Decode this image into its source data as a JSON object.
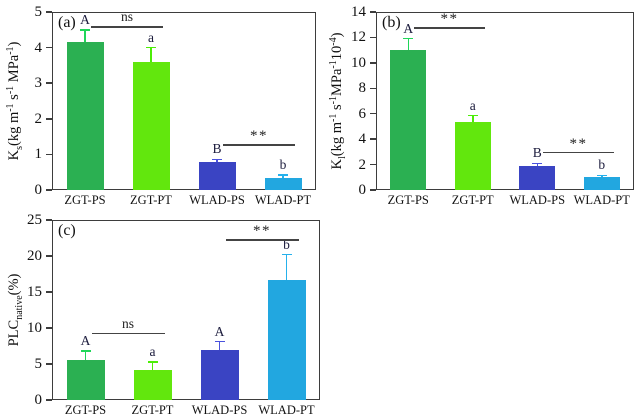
{
  "figure": {
    "background": "#ffffff",
    "description_title": "Bar charts of hydraulic traits by site and organ"
  },
  "palette": {
    "bar_colors": [
      "#2bb052",
      "#62e70d",
      "#3a44c3",
      "#22a7e0"
    ],
    "err_colors": [
      "#1fd659",
      "#4ced07",
      "#4a52dd",
      "#25b1ec"
    ],
    "letter_color": "#1b1b3c",
    "axis_color": "#3d3d3d",
    "sig_color": "#444444"
  },
  "chart_data": [
    {
      "type": "bar",
      "panel": "(a)",
      "ylabel_text": "Ks(kg m-1 s-1 MPa-1)",
      "ylabel_segments": [
        {
          "t": "K"
        },
        {
          "t": "s",
          "style": "sub"
        },
        {
          "t": "(kg m"
        },
        {
          "t": "-1",
          "style": "sup"
        },
        {
          "t": " s"
        },
        {
          "t": "-1",
          "style": "sup"
        },
        {
          "t": " MPa"
        },
        {
          "t": "-1",
          "style": "sup"
        },
        {
          "t": ")"
        }
      ],
      "categories": [
        "ZGT-PS",
        "ZGT-PT",
        "WLAD-PS",
        "WLAD-PT"
      ],
      "values": [
        4.15,
        3.6,
        0.78,
        0.35
      ],
      "errors": [
        0.35,
        0.4,
        0.08,
        0.07
      ],
      "letters": [
        "A",
        "a",
        "B",
        "b"
      ],
      "ylim": [
        0,
        5
      ],
      "yticks": [
        0,
        1,
        2,
        3,
        4,
        5
      ],
      "grid": false,
      "significance": [
        {
          "from": 0,
          "to": 1,
          "label": "ns",
          "y": 4.6
        },
        {
          "from": 2,
          "to": 3,
          "label": "**",
          "y": 1.28
        }
      ]
    },
    {
      "type": "bar",
      "panel": "(b)",
      "ylabel_text": "Kl(kg m-1 s-1MPa-110-4)",
      "ylabel_segments": [
        {
          "t": "K"
        },
        {
          "t": "l",
          "style": "sub"
        },
        {
          "t": "(kg m"
        },
        {
          "t": "-1",
          "style": "sup"
        },
        {
          "t": " s"
        },
        {
          "t": "-1",
          "style": "sup"
        },
        {
          "t": "MPa"
        },
        {
          "t": "-1",
          "style": "sup"
        },
        {
          "t": "10"
        },
        {
          "t": "-4",
          "style": "sup"
        },
        {
          "t": ")"
        }
      ],
      "categories": [
        "ZGT-PS",
        "ZGT-PT",
        "WLAD-PS",
        "WLAD-PT"
      ],
      "values": [
        11.0,
        5.35,
        1.9,
        1.0
      ],
      "errors": [
        0.9,
        0.5,
        0.2,
        0.15
      ],
      "letters": [
        "A",
        "a",
        "B",
        "b"
      ],
      "ylim": [
        0,
        14
      ],
      "yticks": [
        0,
        2,
        4,
        6,
        8,
        10,
        12,
        14
      ],
      "grid": false,
      "significance": [
        {
          "from": 0,
          "to": 1,
          "label": "**",
          "y": 12.8
        },
        {
          "from": 2,
          "to": 3,
          "label": "**",
          "y": 3.0
        }
      ]
    },
    {
      "type": "bar",
      "panel": "(c)",
      "ylabel_text": "PLCnative(%)",
      "ylabel_segments": [
        {
          "t": "PLC"
        },
        {
          "t": "native",
          "style": "sub"
        },
        {
          "t": "(%)"
        }
      ],
      "categories": [
        "ZGT-PS",
        "ZGT-PT",
        "WLAD-PS",
        "WLAD-PT"
      ],
      "values": [
        5.5,
        4.1,
        7.0,
        16.7
      ],
      "errors": [
        1.3,
        1.2,
        1.1,
        3.5
      ],
      "letters": [
        "A",
        "a",
        "A",
        "b"
      ],
      "ylim": [
        0,
        25
      ],
      "yticks": [
        0,
        5,
        10,
        15,
        20,
        25
      ],
      "grid": false,
      "significance": [
        {
          "from": 0,
          "to": 1,
          "label": "ns",
          "y": 9.3
        },
        {
          "from": 2,
          "to": 3,
          "label": "**",
          "y": 22.3
        }
      ]
    }
  ]
}
